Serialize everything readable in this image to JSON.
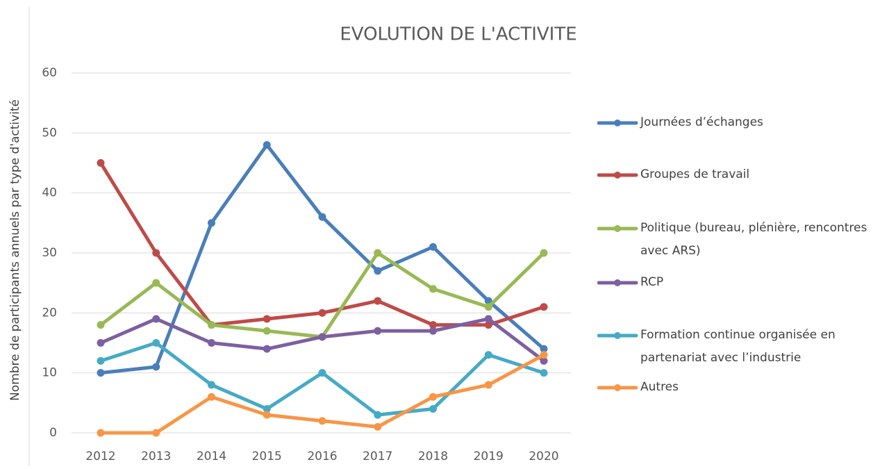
{
  "chart_data": {
    "type": "line",
    "title": "EVOLUTION DE L'ACTIVITE",
    "y_label": "Nombre de participants annuels par type d'activité",
    "categories": [
      "2012",
      "2013",
      "2014",
      "2015",
      "2016",
      "2017",
      "2018",
      "2019",
      "2020"
    ],
    "series": [
      {
        "name": "Journées d’échanges",
        "color": "#4a7ebb",
        "values": [
          10,
          11,
          35,
          48,
          36,
          27,
          31,
          22,
          14
        ]
      },
      {
        "name": "Groupes de travail",
        "color": "#be4b48",
        "values": [
          45,
          30,
          18,
          19,
          20,
          22,
          18,
          18,
          21
        ]
      },
      {
        "name": "Politique (bureau, plénière, rencontres avec ARS)",
        "color": "#98b954",
        "values": [
          18,
          25,
          18,
          17,
          16,
          30,
          24,
          21,
          30
        ]
      },
      {
        "name": "RCP",
        "color": "#7d60a0",
        "values": [
          15,
          19,
          15,
          14,
          16,
          17,
          17,
          19,
          12
        ]
      },
      {
        "name": "Formation continue organisée en partenariat avec l’industrie",
        "color": "#46aac5",
        "values": [
          12,
          15,
          8,
          4,
          10,
          3,
          4,
          13,
          10
        ]
      },
      {
        "name": "Autres",
        "color": "#f79646",
        "values": [
          0,
          0,
          6,
          3,
          2,
          1,
          6,
          8,
          13
        ]
      }
    ],
    "ylim": [
      0,
      60
    ],
    "yticks": [
      0,
      10,
      20,
      30,
      40,
      50,
      60
    ],
    "grid": true,
    "legend": "right"
  }
}
